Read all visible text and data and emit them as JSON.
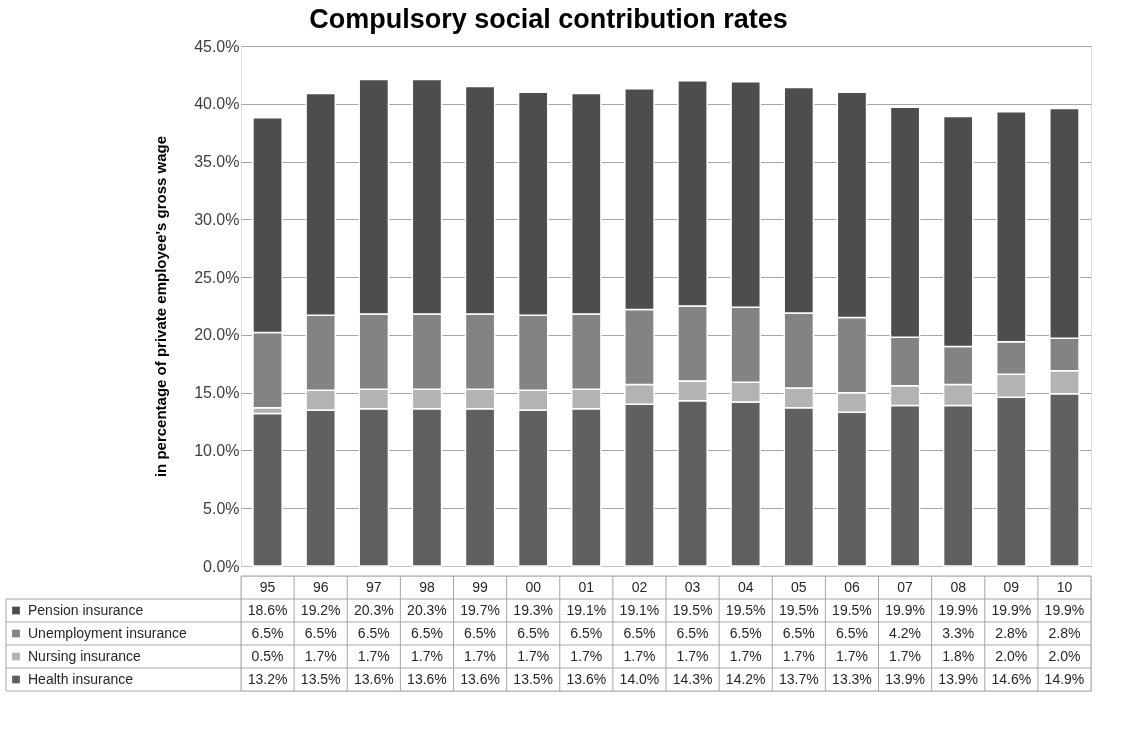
{
  "chart_data": {
    "type": "bar",
    "title": "Compulsory social contribution rates",
    "ylabel": "in percentage of private employee's gross wage",
    "categories": [
      "95",
      "96",
      "97",
      "98",
      "99",
      "00",
      "01",
      "02",
      "03",
      "04",
      "05",
      "06",
      "07",
      "08",
      "09",
      "10"
    ],
    "stacked": true,
    "grid": "y",
    "legend": "bottom",
    "data_labels": true,
    "ylim": [
      0,
      45
    ],
    "yticks": [
      {
        "value": 0,
        "label": "0.0%"
      },
      {
        "value": 5,
        "label": "5.0%"
      },
      {
        "value": 10,
        "label": "10.0%"
      },
      {
        "value": 15,
        "label": "15.0%"
      },
      {
        "value": 20,
        "label": "20.0%"
      },
      {
        "value": 25,
        "label": "25.0%"
      },
      {
        "value": 30,
        "label": "30.0%"
      },
      {
        "value": 35,
        "label": "35.0%"
      },
      {
        "value": 40,
        "label": "40.0%"
      },
      {
        "value": 45,
        "label": "45.0%"
      }
    ],
    "series": [
      {
        "name": "Health insurance",
        "color": "#606060",
        "values": [
          13.2,
          13.5,
          13.6,
          13.6,
          13.6,
          13.5,
          13.6,
          14.0,
          14.3,
          14.2,
          13.7,
          13.3,
          13.9,
          13.9,
          14.6,
          14.9
        ],
        "value_labels": [
          "13.2%",
          "13.5%",
          "13.6%",
          "13.6%",
          "13.6%",
          "13.5%",
          "13.6%",
          "14.0%",
          "14.3%",
          "14.2%",
          "13.7%",
          "13.3%",
          "13.9%",
          "13.9%",
          "14.6%",
          "14.9%"
        ]
      },
      {
        "name": "Nursing insurance",
        "color": "#b3b3b3",
        "values": [
          0.5,
          1.7,
          1.7,
          1.7,
          1.7,
          1.7,
          1.7,
          1.7,
          1.7,
          1.7,
          1.7,
          1.7,
          1.7,
          1.8,
          2.0,
          2.0
        ],
        "value_labels": [
          "0.5%",
          "1.7%",
          "1.7%",
          "1.7%",
          "1.7%",
          "1.7%",
          "1.7%",
          "1.7%",
          "1.7%",
          "1.7%",
          "1.7%",
          "1.7%",
          "1.7%",
          "1.8%",
          "2.0%",
          "2.0%"
        ]
      },
      {
        "name": "Unemployment insurance",
        "color": "#838383",
        "values": [
          6.5,
          6.5,
          6.5,
          6.5,
          6.5,
          6.5,
          6.5,
          6.5,
          6.5,
          6.5,
          6.5,
          6.5,
          4.2,
          3.3,
          2.8,
          2.8
        ],
        "value_labels": [
          "6.5%",
          "6.5%",
          "6.5%",
          "6.5%",
          "6.5%",
          "6.5%",
          "6.5%",
          "6.5%",
          "6.5%",
          "6.5%",
          "6.5%",
          "6.5%",
          "4.2%",
          "3.3%",
          "2.8%",
          "2.8%"
        ]
      },
      {
        "name": "Pension insurance",
        "color": "#4d4d4d",
        "values": [
          18.6,
          19.2,
          20.3,
          20.3,
          19.7,
          19.3,
          19.1,
          19.1,
          19.5,
          19.5,
          19.5,
          19.5,
          19.9,
          19.9,
          19.9,
          19.9
        ],
        "value_labels": [
          "18.6%",
          "19.2%",
          "20.3%",
          "20.3%",
          "19.7%",
          "19.3%",
          "19.1%",
          "19.1%",
          "19.5%",
          "19.5%",
          "19.5%",
          "19.5%",
          "19.9%",
          "19.9%",
          "19.9%",
          "19.9%"
        ]
      }
    ]
  }
}
